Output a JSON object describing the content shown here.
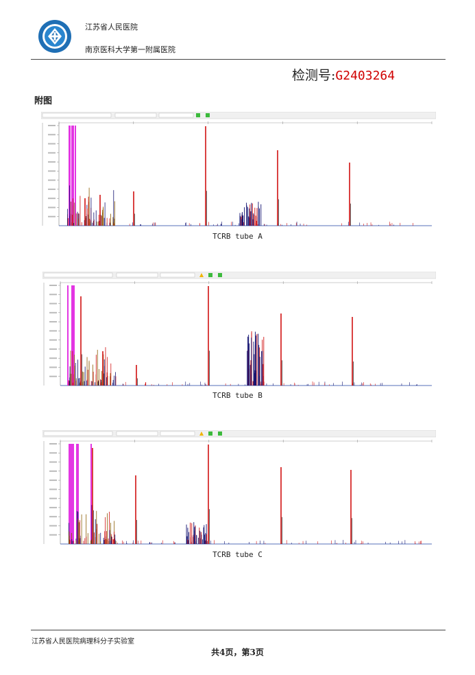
{
  "header": {
    "hospital_name": "江苏省人民医院",
    "university_name": "南京医科大学第一附属医院",
    "test_number_label": "检测号:",
    "test_number_value": "G2403264"
  },
  "figure_heading": "附图",
  "panels": [
    {
      "caption": "TCRB tube A"
    },
    {
      "caption": "TCRB tube B"
    },
    {
      "caption": "TCRB tube C"
    }
  ],
  "colors": {
    "red": "#d01010",
    "magenta": "#e020e0",
    "navy": "#101070",
    "toolbar_green": "#3cba3c",
    "toolbar_warning": "#f0b400"
  },
  "footer": {
    "lab_name": "江苏省人民医院病理科分子实验室",
    "page_info": "共4页，第3页"
  }
}
